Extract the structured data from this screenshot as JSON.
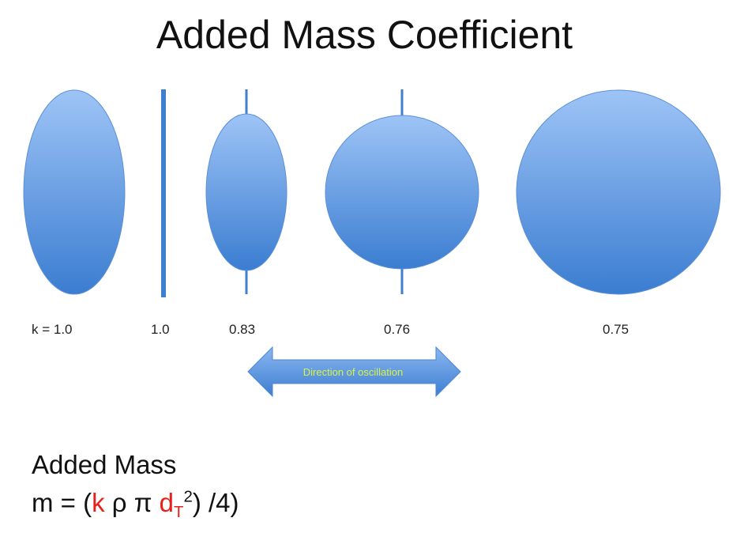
{
  "title": "Added Mass Coefficient",
  "shapes": [
    {
      "name": "tall-ellipse",
      "label": "k = 1.0"
    },
    {
      "name": "flat-plate",
      "label": "1.0"
    },
    {
      "name": "narrow-ellipse",
      "label": "0.83"
    },
    {
      "name": "circle",
      "label": "0.76"
    },
    {
      "name": "large-circle",
      "label": "0.75"
    }
  ],
  "arrow": {
    "label": "Direction of oscillation",
    "color": "#4a86d4",
    "text_color": "#d8f24a"
  },
  "formula": {
    "heading": "Added Mass",
    "lhs": "m = (",
    "k": "k",
    "rho_pi": " ρ π ",
    "d": "d",
    "subscript": "T",
    "exponent": "2",
    "rhs": ") /4)"
  },
  "colors": {
    "shape_top": "#9cc2f5",
    "shape_bottom": "#3d7fd3",
    "accent_red": "#e8201c"
  }
}
